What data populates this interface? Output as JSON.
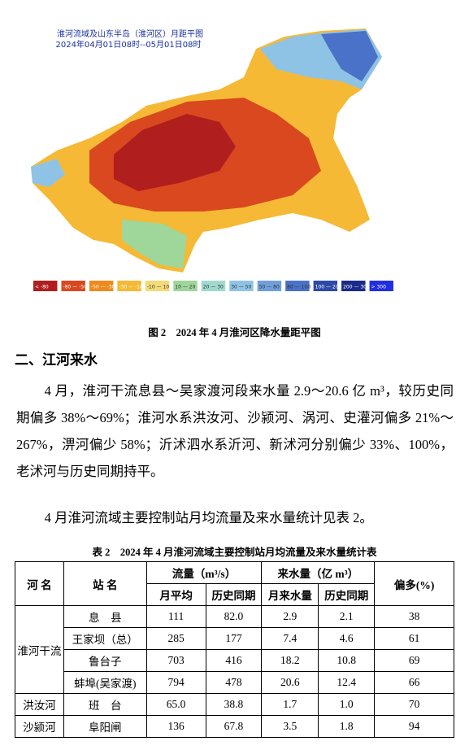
{
  "map": {
    "title": [
      "淮河流域及山东半岛（淮河区）月距平图",
      "2024年04月01日08时--05月01日08时"
    ],
    "legend": [
      {
        "label": "< -80",
        "color": "#b01e1e"
      },
      {
        "label": "-80 — -50",
        "color": "#d9481f"
      },
      {
        "label": "-50 — -30",
        "color": "#ee8a1c"
      },
      {
        "label": "-30 — -10",
        "color": "#f5b935"
      },
      {
        "label": "-10 — 10",
        "color": "#f3dc78"
      },
      {
        "label": "10 — 20",
        "color": "#9fd69a"
      },
      {
        "label": "20 — 30",
        "color": "#9fd9cf"
      },
      {
        "label": "30 — 50",
        "color": "#8fc3e6"
      },
      {
        "label": "50 — 80",
        "color": "#6fa0dc"
      },
      {
        "label": "80 — 100",
        "color": "#4a72c8"
      },
      {
        "label": "100 — 200",
        "color": "#2e4aa8"
      },
      {
        "label": "200 — 300",
        "color": "#1c2a8a"
      },
      {
        "label": "> 300",
        "color": "#2030e0"
      }
    ]
  },
  "figure_caption": "图 2　2024 年 4 月淮河区降水量距平图",
  "section_heading": "二、江河来水",
  "paragraphs": [
    "4 月，淮河干流息县～吴家渡河段来水量 2.9～20.6 亿 m³，较历史同期偏多 38%～69%；淮河水系洪汝河、沙颍河、涡河、史灌河偏多 21%～267%，淠河偏少 58%；沂沭泗水系沂河、新沭河分别偏少 33%、100%，老沭河与历史同期持平。",
    "4 月淮河流域主要控制站月均流量及来水量统计见表 2。"
  ],
  "table": {
    "caption": "表 2　2024 年 4 月淮河流域主要控制站月均流量及来水量统计表",
    "header": {
      "river": "河 名",
      "station": "站 名",
      "flow": "流量（m³/s）",
      "volume": "来水量（亿 m³）",
      "change": "偏多(%)",
      "sub": [
        "月平均",
        "历史同期",
        "月来水量",
        "历史同期"
      ]
    },
    "groups": [
      {
        "river": "淮河干流",
        "rows": [
          {
            "station": "息　县",
            "cells": [
              "111",
              "82.0",
              "2.9",
              "2.1",
              "38"
            ]
          },
          {
            "station": "王家坝（总）",
            "cells": [
              "285",
              "177",
              "7.4",
              "4.6",
              "61"
            ]
          },
          {
            "station": "鲁台子",
            "cells": [
              "703",
              "416",
              "18.2",
              "10.8",
              "69"
            ]
          },
          {
            "station": "蚌埠(吴家渡)",
            "cells": [
              "794",
              "478",
              "20.6",
              "12.4",
              "66"
            ]
          }
        ]
      },
      {
        "river": "洪汝河",
        "rows": [
          {
            "station": "班　台",
            "cells": [
              "65.0",
              "38.8",
              "1.7",
              "1.0",
              "70"
            ]
          }
        ]
      },
      {
        "river": "沙颍河",
        "rows": [
          {
            "station": "阜阳闸",
            "cells": [
              "136",
              "67.8",
              "3.5",
              "1.8",
              "94"
            ]
          }
        ]
      }
    ]
  }
}
